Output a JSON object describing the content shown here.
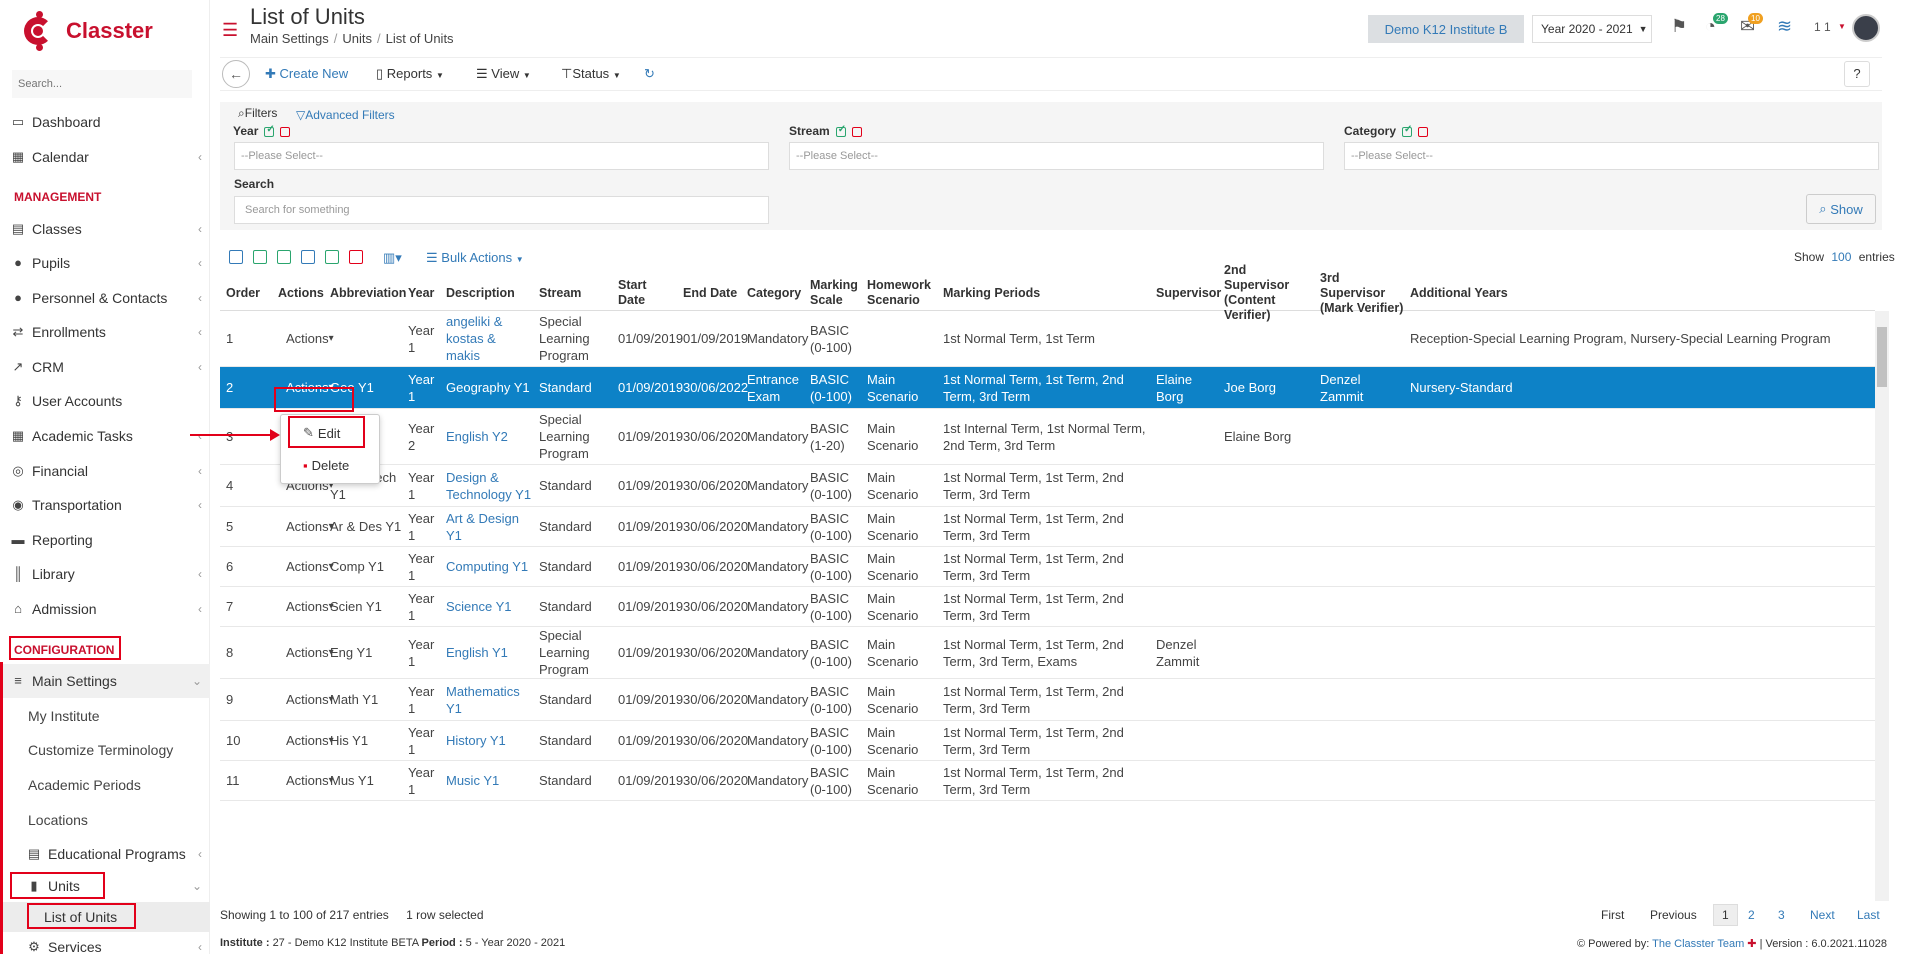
{
  "app": {
    "logo_text": "Classter"
  },
  "sidebar": {
    "search_placeholder": "Search...",
    "items": [
      {
        "label": "Dashboard",
        "icon": "monitor-icon"
      },
      {
        "label": "Calendar",
        "icon": "calendar-icon"
      },
      {
        "label": "Classes",
        "icon": "classes-icon"
      },
      {
        "label": "Pupils",
        "icon": "pupils-icon"
      },
      {
        "label": "Personnel & Contacts",
        "icon": "person-icon"
      },
      {
        "label": "Enrollments",
        "icon": "swap-icon"
      },
      {
        "label": "CRM",
        "icon": "crm-icon"
      },
      {
        "label": "User Accounts",
        "icon": "key-icon"
      },
      {
        "label": "Academic Tasks",
        "icon": "grid-icon"
      },
      {
        "label": "Financial",
        "icon": "coins-icon"
      },
      {
        "label": "Transportation",
        "icon": "bus-icon"
      },
      {
        "label": "Reporting",
        "icon": "printer-icon"
      },
      {
        "label": "Library",
        "icon": "books-icon"
      },
      {
        "label": "Admission",
        "icon": "bank-icon"
      }
    ],
    "section_management": "MANAGEMENT",
    "section_configuration": "CONFIGURATION",
    "main_settings": "Main Settings",
    "sub_items": [
      "My Institute",
      "Customize Terminology",
      "Academic Periods",
      "Locations",
      "Educational Programs"
    ],
    "units": "Units",
    "list_of_units": "List of Units",
    "services": "Services"
  },
  "header": {
    "title": "List of Units",
    "breadcrumb": [
      "Main Settings",
      "Units",
      "List of Units"
    ],
    "institute": "Demo K12 Institute B",
    "year": "Year 2020 - 2021",
    "notif_count": "28",
    "mail_count": "10",
    "user_count": "1 1"
  },
  "toolbar": {
    "create_new": "Create New",
    "reports": "Reports",
    "view": "View",
    "status": "Status",
    "help": "?"
  },
  "filters": {
    "title": "Filters",
    "advanced": "Advanced Filters",
    "year_label": "Year",
    "stream_label": "Stream",
    "category_label": "Category",
    "search_label": "Search",
    "select_placeholder": "--Please Select--",
    "search_placeholder": "Search for something",
    "show": "Show"
  },
  "table_tools": {
    "bulk_actions": "Bulk Actions",
    "show": "Show",
    "entries_count": "100",
    "entries": "entries"
  },
  "columns": [
    "Order",
    "Actions",
    "Abbreviation",
    "Year",
    "Description",
    "Stream",
    "Start Date",
    "End Date",
    "Category",
    "Marking Scale",
    "Homework Scenario",
    "Marking Periods",
    "Supervisor",
    "2nd Supervisor (Content Verifier)",
    "3rd Supervisor (Mark Verifier)",
    "Additional Years"
  ],
  "rows": [
    {
      "order": "1",
      "actions": "Actions",
      "abbr": "",
      "year": "Year 1",
      "desc": "angeliki & kostas & makis",
      "stream": "Special Learning Program",
      "start": "01/09/2019",
      "end": "01/09/2019",
      "cat": "Mandatory",
      "scale": "BASIC (0-100)",
      "hw": "",
      "periods": "1st Normal Term, 1st Term",
      "sup": "",
      "sup2": "",
      "sup3": "",
      "add": "Reception-Special Learning Program, Nursery-Special Learning Program"
    },
    {
      "order": "2",
      "actions": "Actions",
      "abbr": "Geo Y1",
      "year": "Year 1",
      "desc": "Geography Y1",
      "stream": "Standard",
      "start": "01/09/2019",
      "end": "30/06/2022",
      "cat": "Entrance Exam",
      "scale": "BASIC (0-100)",
      "hw": "Main Scenario",
      "periods": "1st Normal Term, 1st Term, 2nd Term, 3rd Term",
      "sup": "Elaine Borg",
      "sup2": "Joe Borg",
      "sup3": "Denzel Zammit",
      "add": "Nursery-Standard"
    },
    {
      "order": "3",
      "actions": "Actions",
      "abbr": "Eng Y2",
      "year": "Year 2",
      "desc": "English Y2",
      "stream": "Special Learning Program",
      "start": "01/09/2019",
      "end": "30/06/2020",
      "cat": "Mandatory",
      "scale": "BASIC (1-20)",
      "hw": "Main Scenario",
      "periods": "1st Internal Term, 1st Normal Term, 2nd Term, 3rd Term",
      "sup": "",
      "sup2": "Elaine Borg",
      "sup3": "",
      "add": ""
    },
    {
      "order": "4",
      "actions": "Actions",
      "abbr": "Des & Tech Y1",
      "year": "Year 1",
      "desc": "Design & Technology Y1",
      "stream": "Standard",
      "start": "01/09/2019",
      "end": "30/06/2020",
      "cat": "Mandatory",
      "scale": "BASIC (0-100)",
      "hw": "Main Scenario",
      "periods": "1st Normal Term, 1st Term, 2nd Term, 3rd Term",
      "sup": "",
      "sup2": "",
      "sup3": "",
      "add": ""
    },
    {
      "order": "5",
      "actions": "Actions",
      "abbr": "Ar & Des Y1",
      "year": "Year 1",
      "desc": "Art & Design Y1",
      "stream": "Standard",
      "start": "01/09/2019",
      "end": "30/06/2020",
      "cat": "Mandatory",
      "scale": "BASIC (0-100)",
      "hw": "Main Scenario",
      "periods": "1st Normal Term, 1st Term, 2nd Term, 3rd Term",
      "sup": "",
      "sup2": "",
      "sup3": "",
      "add": ""
    },
    {
      "order": "6",
      "actions": "Actions",
      "abbr": "Comp Y1",
      "year": "Year 1",
      "desc": "Computing Y1",
      "stream": "Standard",
      "start": "01/09/2019",
      "end": "30/06/2020",
      "cat": "Mandatory",
      "scale": "BASIC (0-100)",
      "hw": "Main Scenario",
      "periods": "1st Normal Term, 1st Term, 2nd Term, 3rd Term",
      "sup": "",
      "sup2": "",
      "sup3": "",
      "add": ""
    },
    {
      "order": "7",
      "actions": "Actions",
      "abbr": "Scien Y1",
      "year": "Year 1",
      "desc": "Science Y1",
      "stream": "Standard",
      "start": "01/09/2019",
      "end": "30/06/2020",
      "cat": "Mandatory",
      "scale": "BASIC (0-100)",
      "hw": "Main Scenario",
      "periods": "1st Normal Term, 1st Term, 2nd Term, 3rd Term",
      "sup": "",
      "sup2": "",
      "sup3": "",
      "add": ""
    },
    {
      "order": "8",
      "actions": "Actions",
      "abbr": "Eng Y1",
      "year": "Year 1",
      "desc": "English Y1",
      "stream": "Special Learning Program",
      "start": "01/09/2019",
      "end": "30/06/2020",
      "cat": "Mandatory",
      "scale": "BASIC (0-100)",
      "hw": "Main Scenario",
      "periods": "1st Normal Term, 1st Term, 2nd Term, 3rd Term, Exams",
      "sup": "Denzel Zammit",
      "sup2": "",
      "sup3": "",
      "add": ""
    },
    {
      "order": "9",
      "actions": "Actions",
      "abbr": "Math Y1",
      "year": "Year 1",
      "desc": "Mathematics Y1",
      "stream": "Standard",
      "start": "01/09/2019",
      "end": "30/06/2020",
      "cat": "Mandatory",
      "scale": "BASIC (0-100)",
      "hw": "Main Scenario",
      "periods": "1st Normal Term, 1st Term, 2nd Term, 3rd Term",
      "sup": "",
      "sup2": "",
      "sup3": "",
      "add": ""
    },
    {
      "order": "10",
      "actions": "Actions",
      "abbr": "His Y1",
      "year": "Year 1",
      "desc": "History Y1",
      "stream": "Standard",
      "start": "01/09/2019",
      "end": "30/06/2020",
      "cat": "Mandatory",
      "scale": "BASIC (0-100)",
      "hw": "Main Scenario",
      "periods": "1st Normal Term, 1st Term, 2nd Term, 3rd Term",
      "sup": "",
      "sup2": "",
      "sup3": "",
      "add": ""
    },
    {
      "order": "11",
      "actions": "Actions",
      "abbr": "Mus Y1",
      "year": "Year 1",
      "desc": "Music Y1",
      "stream": "Standard",
      "start": "01/09/2019",
      "end": "30/06/2020",
      "cat": "Mandatory",
      "scale": "BASIC (0-100)",
      "hw": "Main Scenario",
      "periods": "1st Normal Term, 1st Term, 2nd Term, 3rd Term",
      "sup": "",
      "sup2": "",
      "sup3": "",
      "add": ""
    }
  ],
  "dropdown": {
    "edit": "Edit",
    "delete": "Delete"
  },
  "table_info": {
    "showing": "Showing 1 to 100 of 217 entries",
    "selected": "1 row selected"
  },
  "pager": {
    "first": "First",
    "previous": "Previous",
    "pages": [
      "1",
      "2",
      "3"
    ],
    "next": "Next",
    "last": "Last"
  },
  "footer": {
    "institute_label": "Institute :",
    "institute_value": "27 - Demo K12 Institute BETA",
    "period_label": "Period :",
    "period_value": "5 - Year 2020 - 2021",
    "powered_by": "Powered by:",
    "team": "The Classter Team",
    "version": "| Version : 6.0.2021.11028"
  },
  "colors": {
    "brand": "#c8102e",
    "link": "#337ab7",
    "selected_row": "#0d82c7",
    "highlight": "#e2001a"
  }
}
